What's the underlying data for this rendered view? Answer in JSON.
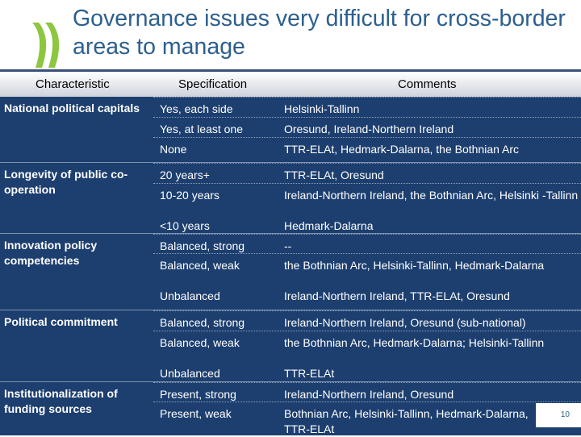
{
  "slide": {
    "title": "Governance issues very difficult for cross-border areas to manage",
    "page_number": "10"
  },
  "table": {
    "headers": [
      "Characteristic",
      "Specification",
      "Comments"
    ],
    "rows": [
      {
        "characteristic": "National political capitals",
        "specs": [
          {
            "spec": "Yes, each side",
            "comment": "Helsinki-Tallinn"
          },
          {
            "spec": "Yes, at least one",
            "comment": "Oresund, Ireland-Northern Ireland"
          },
          {
            "spec": "None",
            "comment": "TTR-ELAt, Hedmark-Dalarna, the Bothnian Arc"
          }
        ]
      },
      {
        "characteristic": "Longevity of public co-operation",
        "specs": [
          {
            "spec": "20 years+",
            "comment": "TTR-ELAt, Oresund"
          },
          {
            "spec": "10-20 years",
            "comment": "Ireland-Northern Ireland, the Bothnian Arc, Helsinki -Tallinn"
          },
          {
            "spec": "<10 years",
            "comment": "Hedmark-Dalarna"
          }
        ]
      },
      {
        "characteristic": "Innovation policy competencies",
        "specs": [
          {
            "spec": "Balanced, strong",
            "comment": "--"
          },
          {
            "spec": "Balanced, weak",
            "comment": "the Bothnian Arc, Helsinki-Tallinn, Hedmark-Dalarna"
          },
          {
            "spec": "Unbalanced",
            "comment": "Ireland-Northern Ireland, TTR-ELAt, Oresund"
          }
        ]
      },
      {
        "characteristic": "Political commitment",
        "specs": [
          {
            "spec": "Balanced, strong",
            "comment": "Ireland-Northern Ireland, Oresund (sub-national)"
          },
          {
            "spec": "Balanced, weak",
            "comment": "the Bothnian Arc, Hedmark-Dalarna; Helsinki-Tallinn"
          },
          {
            "spec": "Unbalanced",
            "comment": "TTR-ELAt"
          }
        ]
      },
      {
        "characteristic": "Institutionalization of funding sources",
        "specs": [
          {
            "spec": "Present, strong",
            "comment": "Ireland-Northern Ireland, Oresund"
          },
          {
            "spec": "Present, weak",
            "comment": "Bothnian Arc, Helsinki-Tallinn, Hedmark-Dalarna, TTR-ELAt"
          }
        ]
      }
    ]
  }
}
